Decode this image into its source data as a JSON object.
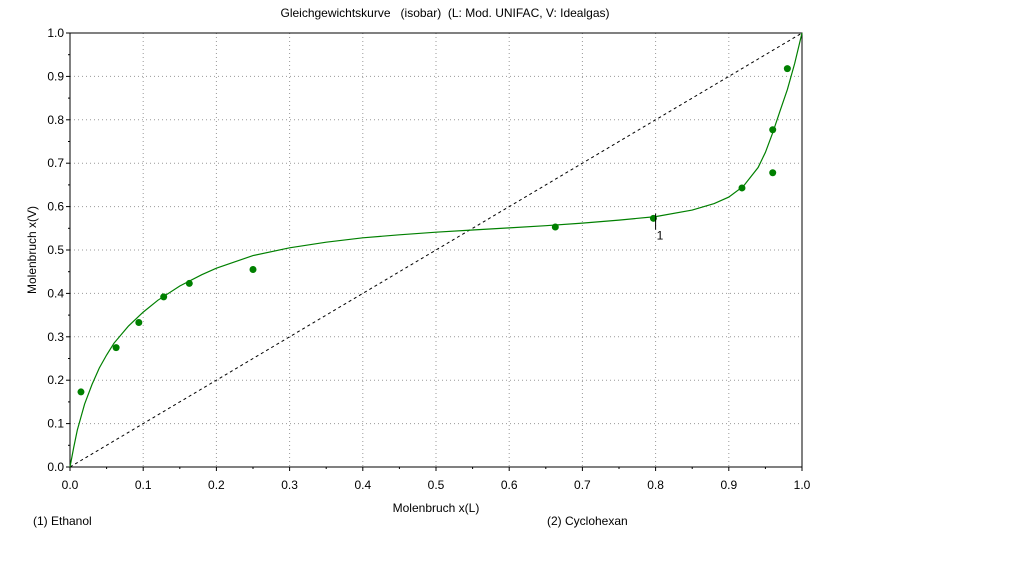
{
  "chart_data": {
    "type": "scatter",
    "title": "Gleichgewichtskurve   (isobar)  (L: Mod. UNIFAC, V: Idealgas)",
    "xlabel": "Molenbruch x(L)",
    "ylabel": "Molenbruch x(V)",
    "xlim": [
      0,
      1
    ],
    "ylim": [
      0,
      1
    ],
    "x_ticks": [
      "0.0",
      "0.1",
      "0.2",
      "0.3",
      "0.4",
      "0.5",
      "0.6",
      "0.7",
      "0.8",
      "0.9",
      "1.0"
    ],
    "y_ticks": [
      "0.0",
      "0.1",
      "0.2",
      "0.3",
      "0.4",
      "0.5",
      "0.6",
      "0.7",
      "0.8",
      "0.9",
      "1.0"
    ],
    "grid": true,
    "components": [
      "(1) Ethanol",
      "(2) Cyclohexan"
    ],
    "series": [
      {
        "role": "model-curve",
        "color": "#008000",
        "x": [
          0.0,
          0.005,
          0.01,
          0.02,
          0.03,
          0.04,
          0.05,
          0.06,
          0.08,
          0.1,
          0.12,
          0.15,
          0.18,
          0.2,
          0.25,
          0.3,
          0.35,
          0.4,
          0.45,
          0.5,
          0.55,
          0.6,
          0.65,
          0.7,
          0.75,
          0.8,
          0.85,
          0.88,
          0.9,
          0.92,
          0.94,
          0.95,
          0.96,
          0.97,
          0.98,
          0.99,
          1.0
        ],
        "y": [
          0.0,
          0.045,
          0.085,
          0.145,
          0.19,
          0.228,
          0.258,
          0.285,
          0.325,
          0.357,
          0.384,
          0.417,
          0.443,
          0.458,
          0.487,
          0.505,
          0.518,
          0.528,
          0.535,
          0.541,
          0.546,
          0.551,
          0.556,
          0.562,
          0.569,
          0.577,
          0.592,
          0.607,
          0.622,
          0.647,
          0.69,
          0.725,
          0.77,
          0.82,
          0.87,
          0.93,
          1.0
        ]
      },
      {
        "role": "diagonal",
        "color": "#000000",
        "x": [
          0,
          1
        ],
        "y": [
          0,
          1
        ]
      },
      {
        "role": "experimental",
        "color": "#008000",
        "x": [
          0.015,
          0.063,
          0.094,
          0.128,
          0.163,
          0.25,
          0.663,
          0.797,
          0.918,
          0.96,
          0.96,
          0.98
        ],
        "y": [
          0.173,
          0.275,
          0.333,
          0.392,
          0.423,
          0.455,
          0.553,
          0.573,
          0.643,
          0.678,
          0.777,
          0.918
        ]
      }
    ],
    "annotations": [
      {
        "text": "1",
        "x": 0.8,
        "y": 0.57
      }
    ]
  }
}
